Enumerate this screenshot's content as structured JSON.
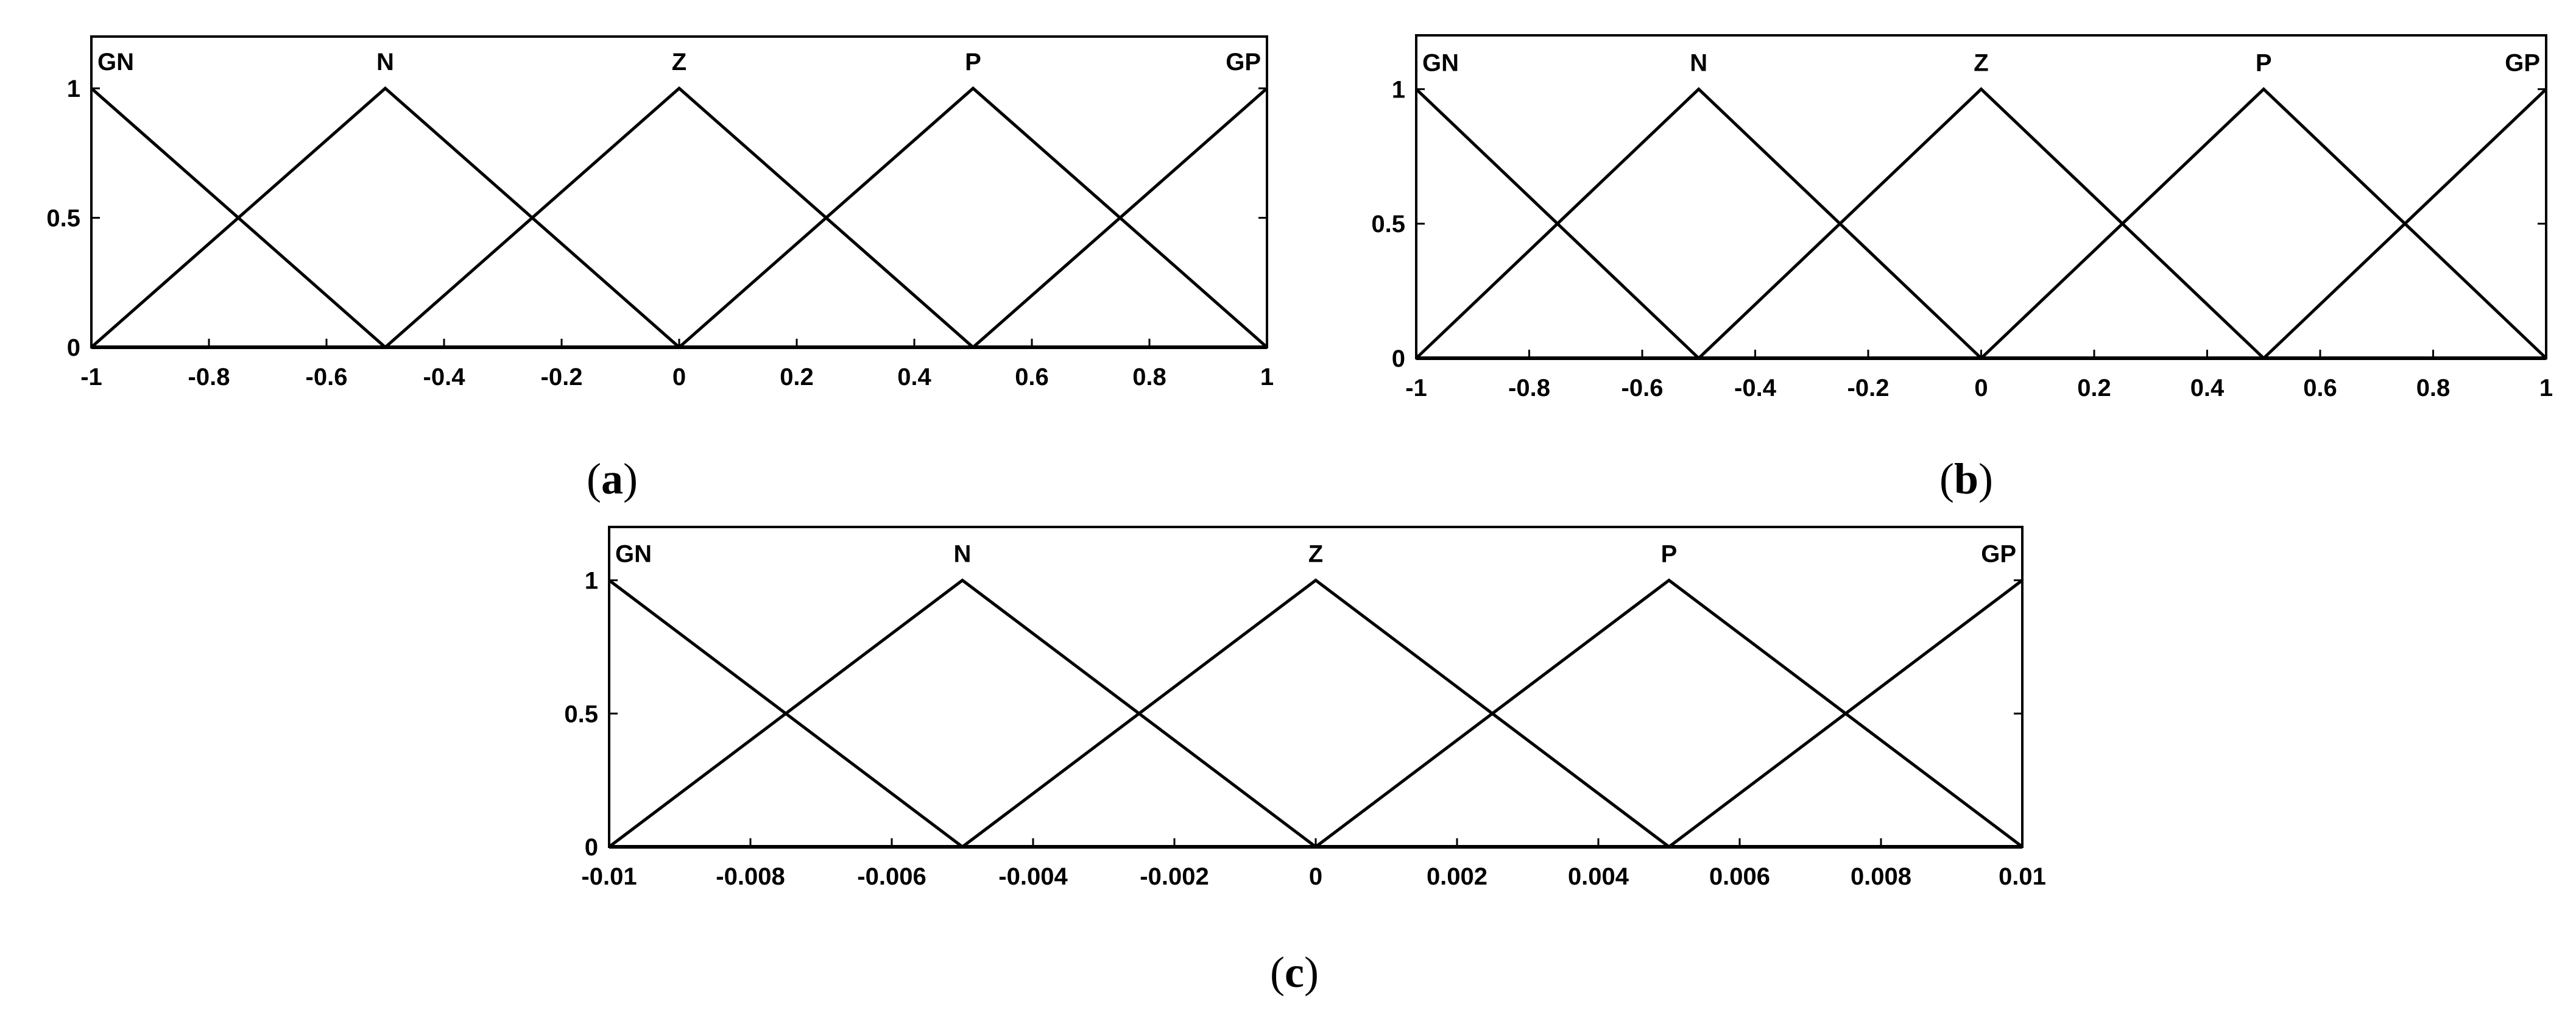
{
  "chart_data": [
    {
      "type": "line",
      "caption_letter": "a",
      "x_ticks": [
        "-1",
        "-0.8",
        "-0.6",
        "-0.4",
        "-0.2",
        "0",
        "0.2",
        "0.4",
        "0.6",
        "0.8",
        "1"
      ],
      "y_ticks": [
        "0",
        "0.5",
        "1"
      ],
      "xlim": [
        -1,
        1
      ],
      "ylim": [
        0,
        1.2
      ],
      "series": [
        {
          "name": "GN",
          "x": [
            -1,
            -0.5
          ],
          "y": [
            1,
            0
          ]
        },
        {
          "name": "N",
          "x": [
            -1,
            -0.5,
            0
          ],
          "y": [
            0,
            1,
            0
          ]
        },
        {
          "name": "Z",
          "x": [
            -0.5,
            0,
            0.5
          ],
          "y": [
            0,
            1,
            0
          ]
        },
        {
          "name": "P",
          "x": [
            0,
            0.5,
            1
          ],
          "y": [
            0,
            1,
            0
          ]
        },
        {
          "name": "GP",
          "x": [
            0.5,
            1
          ],
          "y": [
            0,
            1
          ]
        }
      ]
    },
    {
      "type": "line",
      "caption_letter": "b",
      "x_ticks": [
        "-1",
        "-0.8",
        "-0.6",
        "-0.4",
        "-0.2",
        "0",
        "0.2",
        "0.4",
        "0.6",
        "0.8",
        "1"
      ],
      "y_ticks": [
        "0",
        "0.5",
        "1"
      ],
      "xlim": [
        -1,
        1
      ],
      "ylim": [
        0,
        1.2
      ],
      "series": [
        {
          "name": "GN",
          "x": [
            -1,
            -0.5
          ],
          "y": [
            1,
            0
          ]
        },
        {
          "name": "N",
          "x": [
            -1,
            -0.5,
            0
          ],
          "y": [
            0,
            1,
            0
          ]
        },
        {
          "name": "Z",
          "x": [
            -0.5,
            0,
            0.5
          ],
          "y": [
            0,
            1,
            0
          ]
        },
        {
          "name": "P",
          "x": [
            0,
            0.5,
            1
          ],
          "y": [
            0,
            1,
            0
          ]
        },
        {
          "name": "GP",
          "x": [
            0.5,
            1
          ],
          "y": [
            0,
            1
          ]
        }
      ]
    },
    {
      "type": "line",
      "caption_letter": "c",
      "x_ticks": [
        "-0.01",
        "-0.008",
        "-0.006",
        "-0.004",
        "-0.002",
        "0",
        "0.002",
        "0.004",
        "0.006",
        "0.008",
        "0.01"
      ],
      "y_ticks": [
        "0",
        "0.5",
        "1"
      ],
      "xlim": [
        -0.01,
        0.01
      ],
      "ylim": [
        0,
        1.2
      ],
      "series": [
        {
          "name": "GN",
          "x": [
            -0.01,
            -0.005
          ],
          "y": [
            1,
            0
          ]
        },
        {
          "name": "N",
          "x": [
            -0.01,
            -0.005,
            0
          ],
          "y": [
            0,
            1,
            0
          ]
        },
        {
          "name": "Z",
          "x": [
            -0.005,
            0,
            0.005
          ],
          "y": [
            0,
            1,
            0
          ]
        },
        {
          "name": "P",
          "x": [
            0,
            0.005,
            0.01
          ],
          "y": [
            0,
            1,
            0
          ]
        },
        {
          "name": "GP",
          "x": [
            0.005,
            0.01
          ],
          "y": [
            0,
            1
          ]
        }
      ]
    }
  ]
}
